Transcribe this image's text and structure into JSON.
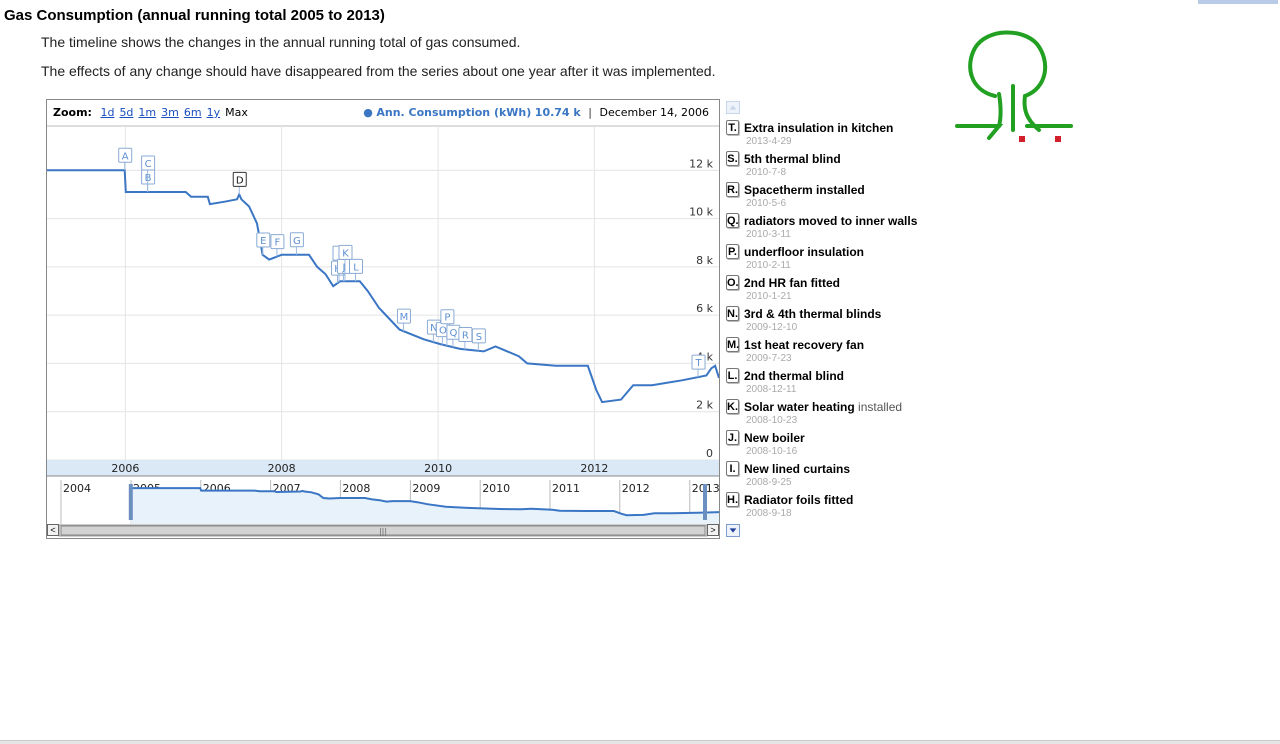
{
  "page": {
    "title": "Gas Consumption (annual running total 2005 to 2013)",
    "description_1": "The timeline shows the changes in the annual running total of gas consumed.",
    "description_2": "The effects of any change should have disappeared from the series about one year after it was implemented."
  },
  "controls": {
    "zoom_label": "Zoom:",
    "zoom_options": [
      "1d",
      "5d",
      "1m",
      "3m",
      "6m",
      "1y",
      "Max"
    ],
    "zoom_selected": "Max",
    "series_label": "Ann. Consumption (kWh)",
    "series_value": "10.74 k",
    "readout_date": "December 14, 2006",
    "scroll_left_glyph": "<",
    "scroll_right_glyph": ">",
    "scroll_grip": "|||"
  },
  "colors": {
    "series": "#3a76c4",
    "logo_green": "#22a022",
    "logo_red": "#d0202a",
    "range_fill": "#e8f2fa"
  },
  "icons": {
    "logo": "tree-logo",
    "events_up": "triangle-up-icon",
    "events_down": "triangle-down-icon"
  },
  "chart_data": {
    "type": "line",
    "title": "",
    "xlabel": "",
    "ylabel": "",
    "series": [
      {
        "name": "Ann. Consumption (kWh)",
        "points": [
          [
            "2004-12-31",
            12000
          ],
          [
            "2005-12-29",
            12000
          ],
          [
            "2006-01-03",
            11100
          ],
          [
            "2006-10-10",
            11100
          ],
          [
            "2006-11-04",
            10900
          ],
          [
            "2007-01-21",
            10900
          ],
          [
            "2007-01-31",
            10600
          ],
          [
            "2007-04-10",
            10700
          ],
          [
            "2007-06-07",
            10800
          ],
          [
            "2007-06-17",
            11000
          ],
          [
            "2007-06-27",
            10800
          ],
          [
            "2007-08-02",
            10500
          ],
          [
            "2007-09-08",
            9800
          ],
          [
            "2007-10-04",
            8500
          ],
          [
            "2007-11-04",
            8300
          ],
          [
            "2008-01-01",
            8500
          ],
          [
            "2008-05-08",
            8500
          ],
          [
            "2008-06-15",
            8000
          ],
          [
            "2008-07-24",
            7700
          ],
          [
            "2008-08-29",
            7200
          ],
          [
            "2008-09-30",
            7400
          ],
          [
            "2008-10-27",
            7400
          ],
          [
            "2008-12-31",
            7400
          ],
          [
            "2009-02-06",
            7000
          ],
          [
            "2009-03-31",
            6300
          ],
          [
            "2009-07-05",
            5400
          ],
          [
            "2009-10-26",
            5000
          ],
          [
            "2010-01-11",
            4800
          ],
          [
            "2010-04-13",
            4600
          ],
          [
            "2010-08-02",
            4500
          ],
          [
            "2010-09-26",
            4700
          ],
          [
            "2011-01-13",
            4300
          ],
          [
            "2011-02-21",
            4000
          ],
          [
            "2011-07-04",
            3900
          ],
          [
            "2011-12-01",
            3900
          ],
          [
            "2012-01-10",
            2900
          ],
          [
            "2012-02-06",
            2400
          ],
          [
            "2012-05-04",
            2500
          ],
          [
            "2012-06-30",
            3100
          ],
          [
            "2012-09-26",
            3100
          ],
          [
            "2013-02-13",
            3300
          ],
          [
            "2013-06-07",
            3500
          ],
          [
            "2013-06-30",
            3800
          ],
          [
            "2013-07-18",
            3900
          ],
          [
            "2013-08-05",
            3400
          ]
        ]
      }
    ],
    "xlim": [
      "2004-12-31",
      "2013-08-05"
    ],
    "ylim": [
      0,
      14000
    ],
    "y_ticks": [
      0,
      2000,
      4000,
      6000,
      8000,
      10000,
      12000
    ],
    "y_tick_labels": [
      "0",
      "2 k",
      "4 k",
      "6 k",
      "8 k",
      "10 k",
      "12 k"
    ],
    "x_ticks": [
      "2006-01-01",
      "2008-01-01",
      "2010-01-01",
      "2012-01-01"
    ],
    "x_tick_labels": [
      "2006",
      "2008",
      "2010",
      "2012"
    ],
    "grid": true,
    "navigator": {
      "range": [
        "2004-01-01",
        "2013-04-01"
      ],
      "ticks": [
        "2004-01-01",
        "2005-01-01",
        "2006-01-01",
        "2007-01-01",
        "2008-01-01",
        "2009-01-01",
        "2010-01-01",
        "2011-01-01",
        "2012-01-01",
        "2013-01-01"
      ],
      "tick_labels": [
        "2004",
        "2005",
        "2006",
        "2007",
        "2008",
        "2009",
        "2010",
        "2011",
        "2012",
        "2013"
      ]
    },
    "flags": [
      {
        "letter": "A",
        "date": "2005-12-29"
      },
      {
        "letter": "B",
        "date": "2006-04-15"
      },
      {
        "letter": "C",
        "date": "2006-04-15"
      },
      {
        "letter": "D",
        "date": "2007-06-17"
      },
      {
        "letter": "E",
        "date": "2007-10-05"
      },
      {
        "letter": "F",
        "date": "2007-12-10"
      },
      {
        "letter": "G",
        "date": "2008-03-10"
      },
      {
        "letter": "H",
        "date": "2008-09-18"
      },
      {
        "letter": "I",
        "date": "2008-09-25"
      },
      {
        "letter": "J",
        "date": "2008-10-16"
      },
      {
        "letter": "K",
        "date": "2008-10-23"
      },
      {
        "letter": "L",
        "date": "2008-12-11"
      },
      {
        "letter": "M",
        "date": "2009-07-23"
      },
      {
        "letter": "N",
        "date": "2009-12-10"
      },
      {
        "letter": "O",
        "date": "2010-01-21"
      },
      {
        "letter": "P",
        "date": "2010-02-11"
      },
      {
        "letter": "Q",
        "date": "2010-03-11"
      },
      {
        "letter": "R",
        "date": "2010-05-06"
      },
      {
        "letter": "S",
        "date": "2010-07-08"
      },
      {
        "letter": "T",
        "date": "2013-04-29"
      }
    ]
  },
  "events": [
    {
      "letter": "T.",
      "title": "Extra insulation in kitchen",
      "extra": "",
      "date": "2013-4-29"
    },
    {
      "letter": "S.",
      "title": "5th thermal blind",
      "extra": "",
      "date": "2010-7-8"
    },
    {
      "letter": "R.",
      "title": "Spacetherm installed",
      "extra": "",
      "date": "2010-5-6"
    },
    {
      "letter": "Q.",
      "title": "radiators moved to inner walls",
      "extra": "",
      "date": "2010-3-11"
    },
    {
      "letter": "P.",
      "title": "underfloor insulation",
      "extra": "",
      "date": "2010-2-11"
    },
    {
      "letter": "O.",
      "title": "2nd HR fan fitted",
      "extra": "",
      "date": "2010-1-21"
    },
    {
      "letter": "N.",
      "title": "3rd & 4th thermal blinds",
      "extra": "",
      "date": "2009-12-10"
    },
    {
      "letter": "M.",
      "title": "1st heat recovery fan",
      "extra": "",
      "date": "2009-7-23"
    },
    {
      "letter": "L.",
      "title": "2nd thermal blind",
      "extra": "",
      "date": "2008-12-11"
    },
    {
      "letter": "K.",
      "title": "Solar water heating",
      "extra": "installed",
      "date": "2008-10-23"
    },
    {
      "letter": "J.",
      "title": "New boiler",
      "extra": "",
      "date": "2008-10-16"
    },
    {
      "letter": "I.",
      "title": "New lined curtains",
      "extra": "",
      "date": "2008-9-25"
    },
    {
      "letter": "H.",
      "title": "Radiator foils fitted",
      "extra": "",
      "date": "2008-9-18"
    }
  ]
}
